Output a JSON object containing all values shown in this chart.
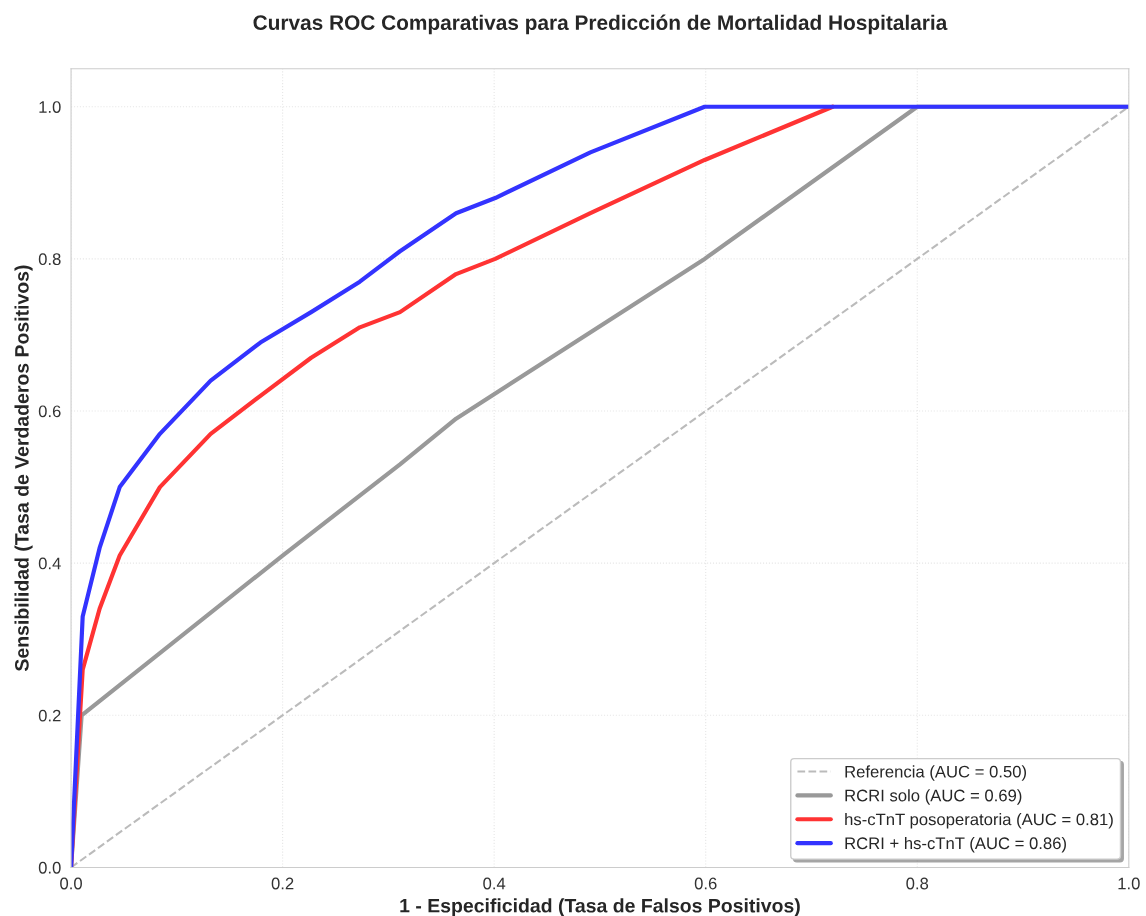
{
  "chart_data": {
    "type": "line",
    "title": "Curvas ROC Comparativas para Predicción de Mortalidad Hospitalaria",
    "xlabel": "1 - Especificidad (Tasa de Falsos Positivos)",
    "ylabel": "Sensibilidad (Tasa de Verdaderos Positivos)",
    "xlim": [
      0,
      1
    ],
    "ylim": [
      0,
      1.05
    ],
    "xticks": [
      {
        "value": 0,
        "label": "0.0"
      },
      {
        "value": 0.2,
        "label": "0.2"
      },
      {
        "value": 0.4,
        "label": "0.4"
      },
      {
        "value": 0.6,
        "label": "0.6"
      },
      {
        "value": 0.8,
        "label": "0.8"
      },
      {
        "value": 1,
        "label": "1.0"
      }
    ],
    "yticks": [
      {
        "value": 0,
        "label": "0.0"
      },
      {
        "value": 0.2,
        "label": "0.2"
      },
      {
        "value": 0.4,
        "label": "0.4"
      },
      {
        "value": 0.6,
        "label": "0.6"
      },
      {
        "value": 0.8,
        "label": "0.8"
      },
      {
        "value": 1,
        "label": "1.0"
      }
    ],
    "grid": true,
    "legend": "bottom right",
    "series": [
      {
        "name": "Referencia (AUC = 0.50)",
        "color": "#bbbbbb",
        "line_style": "dashed",
        "x": [
          0,
          1
        ],
        "values": [
          0,
          1
        ]
      },
      {
        "name": "RCRI solo (AUC = 0.69)",
        "color": "#999999",
        "line_style": "solid",
        "x": [
          0,
          0.01,
          0.2,
          0.311,
          0.364,
          0.599,
          0.8,
          1
        ],
        "values": [
          0,
          0.2,
          0.41,
          0.53,
          0.59,
          0.8,
          1,
          1
        ]
      },
      {
        "name": "hs-cTnT posoperatoria (AUC = 0.81)",
        "color": "#ff3333",
        "line_style": "solid",
        "x": [
          0,
          0.011,
          0.027,
          0.046,
          0.084,
          0.132,
          0.179,
          0.227,
          0.273,
          0.311,
          0.364,
          0.401,
          0.491,
          0.599,
          0.72
        ],
        "values": [
          0,
          0.26,
          0.34,
          0.41,
          0.5,
          0.57,
          0.62,
          0.67,
          0.71,
          0.73,
          0.78,
          0.8,
          0.86,
          0.93,
          1
        ]
      },
      {
        "name": "RCRI + hs-cTnT (AUC = 0.86)",
        "color": "#3333ff",
        "line_style": "solid",
        "x": [
          0,
          0.011,
          0.027,
          0.046,
          0.084,
          0.132,
          0.179,
          0.227,
          0.273,
          0.311,
          0.364,
          0.401,
          0.491,
          0.599,
          1
        ],
        "values": [
          0,
          0.33,
          0.42,
          0.5,
          0.57,
          0.64,
          0.69,
          0.73,
          0.77,
          0.81,
          0.86,
          0.88,
          0.94,
          1,
          1
        ]
      }
    ]
  }
}
